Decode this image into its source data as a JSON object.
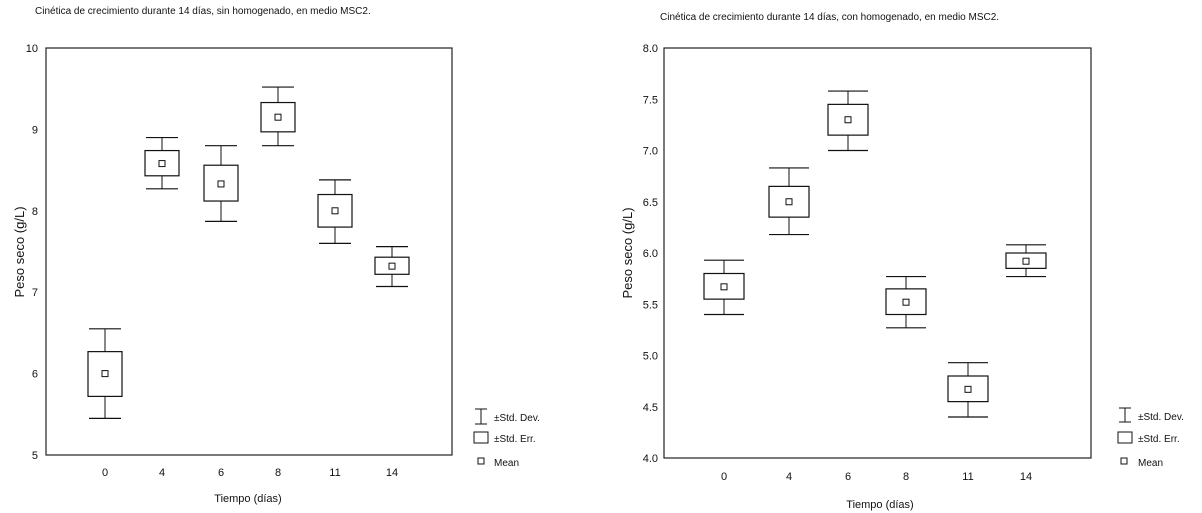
{
  "legend": {
    "std_dev": "±Std. Dev.",
    "std_err": "±Std. Err.",
    "mean": "Mean"
  },
  "chart_data": [
    {
      "type": "box",
      "title": "Cinética de crecimiento durante 14 días, sin homogenado, en medio MSC2.",
      "xlabel": "Tiempo (días)",
      "ylabel": "Peso seco (g/L)",
      "categories": [
        "0",
        "4",
        "6",
        "8",
        "11",
        "14"
      ],
      "ylim": [
        5,
        10
      ],
      "yticks": [
        "5",
        "6",
        "7",
        "8",
        "9",
        "10"
      ],
      "mean": [
        6.0,
        8.58,
        8.33,
        9.15,
        8.0,
        7.32
      ],
      "se_low": [
        5.72,
        8.43,
        8.12,
        8.97,
        7.8,
        7.22
      ],
      "se_high": [
        6.27,
        8.74,
        8.56,
        9.33,
        8.2,
        7.43
      ],
      "sd_low": [
        5.45,
        8.27,
        7.87,
        8.8,
        7.6,
        7.07
      ],
      "sd_high": [
        6.55,
        8.9,
        8.8,
        9.52,
        8.38,
        7.56
      ],
      "grid": false,
      "legend_position": "bottom-right"
    },
    {
      "type": "box",
      "title": "Cinética de crecimiento durante 14 días, con homogenado, en medio MSC2.",
      "xlabel": "Tiempo (días)",
      "ylabel": "Peso seco (g/L)",
      "categories": [
        "0",
        "4",
        "6",
        "8",
        "11",
        "14"
      ],
      "ylim": [
        4.0,
        8.0
      ],
      "yticks": [
        "4.0",
        "4.5",
        "5.0",
        "5.5",
        "6.0",
        "6.5",
        "7.0",
        "7.5",
        "8.0"
      ],
      "mean": [
        5.67,
        6.5,
        7.3,
        5.52,
        4.67,
        5.92
      ],
      "se_low": [
        5.55,
        6.35,
        7.15,
        5.4,
        4.55,
        5.85
      ],
      "se_high": [
        5.8,
        6.65,
        7.45,
        5.65,
        4.8,
        6.0
      ],
      "sd_low": [
        5.4,
        6.18,
        7.0,
        5.27,
        4.4,
        5.77
      ],
      "sd_high": [
        5.93,
        6.83,
        7.58,
        5.77,
        4.93,
        6.08
      ],
      "grid": false,
      "legend_position": "bottom-right"
    }
  ]
}
